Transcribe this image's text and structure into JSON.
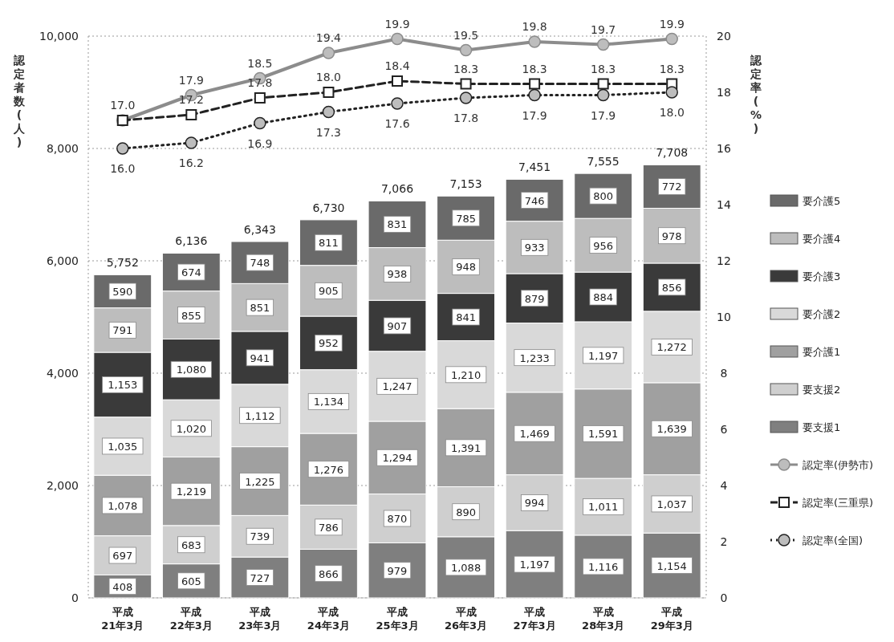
{
  "chart_data": {
    "type": "bar",
    "stacked": true,
    "grid": "y",
    "legend": "right",
    "ylabel": "認定者数(人)",
    "y2label": "認定率(%)",
    "categories": [
      "平成\n21年3月",
      "平成\n22年3月",
      "平成\n23年3月",
      "平成\n24年3月",
      "平成\n25年3月",
      "平成\n26年3月",
      "平成\n27年3月",
      "平成\n28年3月",
      "平成\n29年3月"
    ],
    "ylim": [
      0,
      10000
    ],
    "yticks": [
      0,
      {
        "value": 2000,
        "label": "2,000"
      },
      {
        "value": 4000,
        "label": "4,000"
      },
      {
        "value": 6000,
        "label": "6,000"
      },
      {
        "value": 8000,
        "label": "8,000"
      },
      {
        "value": 10000,
        "label": "10,000"
      }
    ],
    "y2lim": [
      0,
      20
    ],
    "y2ticks": [
      0,
      2,
      4,
      6,
      8,
      10,
      12,
      14,
      16,
      18,
      20
    ],
    "totals": [
      "5,752",
      "6,136",
      "6,343",
      "6,730",
      "7,066",
      "7,153",
      "7,451",
      "7,555",
      "7,708"
    ],
    "series": [
      {
        "name": "要支援1",
        "color": "#7f7f7f",
        "values": [
          408,
          605,
          727,
          866,
          979,
          1088,
          1197,
          1116,
          1154
        ],
        "value_labels": [
          "408",
          "605",
          "727",
          "866",
          "979",
          "1,088",
          "1,197",
          "1,116",
          "1,154"
        ]
      },
      {
        "name": "要支援2",
        "color": "#cfcfcf",
        "values": [
          697,
          683,
          739,
          786,
          870,
          890,
          994,
          1011,
          1037
        ],
        "value_labels": [
          "697",
          "683",
          "739",
          "786",
          "870",
          "890",
          "994",
          "1,011",
          "1,037"
        ]
      },
      {
        "name": "要介護1",
        "color": "#a0a0a0",
        "values": [
          1078,
          1219,
          1225,
          1276,
          1294,
          1391,
          1469,
          1591,
          1639
        ],
        "value_labels": [
          "1,078",
          "1,219",
          "1,225",
          "1,276",
          "1,294",
          "1,391",
          "1,469",
          "1,591",
          "1,639"
        ]
      },
      {
        "name": "要介護2",
        "color": "#d9d9d9",
        "values": [
          1035,
          1020,
          1112,
          1134,
          1247,
          1210,
          1233,
          1197,
          1272
        ],
        "value_labels": [
          "1,035",
          "1,020",
          "1,112",
          "1,134",
          "1,247",
          "1,210",
          "1,233",
          "1,197",
          "1,272"
        ]
      },
      {
        "name": "要介護3",
        "color": "#3a3a3a",
        "values": [
          1153,
          1080,
          941,
          952,
          907,
          841,
          879,
          884,
          856
        ],
        "value_labels": [
          "1,153",
          "1,080",
          "941",
          "952",
          "907",
          "841",
          "879",
          "884",
          "856"
        ]
      },
      {
        "name": "要介護4",
        "color": "#bdbdbd",
        "values": [
          791,
          855,
          851,
          905,
          938,
          948,
          933,
          956,
          978
        ],
        "value_labels": [
          "791",
          "855",
          "851",
          "905",
          "938",
          "948",
          "933",
          "956",
          "978"
        ]
      },
      {
        "name": "要介護5",
        "color": "#6a6a6a",
        "values": [
          590,
          674,
          748,
          811,
          831,
          785,
          746,
          800,
          772
        ],
        "value_labels": [
          "590",
          "674",
          "748",
          "811",
          "831",
          "785",
          "746",
          "800",
          "772"
        ]
      },
      {
        "name": "認定率(伊勢市)",
        "type": "line",
        "axis": "y2",
        "color": "#8c8c8c",
        "marker": "circle",
        "line_style": "solid",
        "values": [
          17.0,
          17.9,
          18.5,
          19.4,
          19.9,
          19.5,
          19.8,
          19.7,
          19.9
        ],
        "value_labels": [
          "17.0",
          "17.9",
          "18.5",
          "19.4",
          "19.9",
          "19.5",
          "19.8",
          "19.7",
          "19.9"
        ]
      },
      {
        "name": "認定率(三重県)",
        "type": "line",
        "axis": "y2",
        "color": "#222222",
        "marker": "square",
        "line_style": "dashed",
        "values": [
          17.0,
          17.2,
          17.8,
          18.0,
          18.4,
          18.3,
          18.3,
          18.3,
          18.3
        ],
        "value_labels": [
          null,
          "17.2",
          "17.8",
          "18.0",
          "18.4",
          "18.3",
          "18.3",
          "18.3",
          "18.3"
        ]
      },
      {
        "name": "認定率(全国)",
        "type": "line",
        "axis": "y2",
        "color": "#222222",
        "marker": "circle",
        "line_style": "dotted",
        "values": [
          16.0,
          16.2,
          16.9,
          17.3,
          17.6,
          17.8,
          17.9,
          17.9,
          18.0
        ],
        "value_labels": [
          "16.0",
          "16.2",
          "16.9",
          "17.3",
          "17.6",
          "17.8",
          "17.9",
          "17.9",
          "18.0"
        ]
      }
    ]
  }
}
